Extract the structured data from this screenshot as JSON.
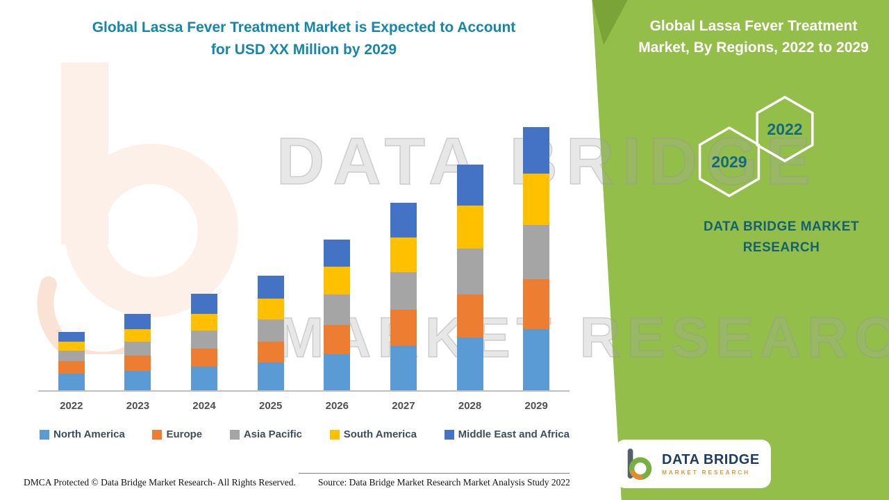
{
  "left_title": {
    "line1": "Global Lassa Fever Treatment Market is Expected to Account",
    "line2": "for USD XX Million by 2029"
  },
  "panel": {
    "title_line1": "Global Lassa Fever Treatment",
    "title_line2": "Market, By Regions, 2022 to 2029",
    "hexagons": [
      {
        "label": "2029"
      },
      {
        "label": "2022"
      }
    ],
    "brand_line1": "DATA BRIDGE MARKET",
    "brand_line2": "RESEARCH",
    "bg_color": "#94BE4A",
    "text_color": "#15616F"
  },
  "watermark": {
    "line1": "DATA BRIDGE",
    "line2": "MARKET RESEARCH"
  },
  "logo": {
    "name": "DATA BRIDGE",
    "subname": "MARKET RESEARCH"
  },
  "footer": {
    "left": "DMCA Protected © Data Bridge Market Research- All Rights Reserved.",
    "source": "Source: Data Bridge Market Research Market Analysis Study 2022"
  },
  "chart_data": {
    "type": "bar",
    "stacked": true,
    "title": "Global Lassa Fever Treatment Market is Expected to Account for USD XX Million by 2029",
    "categories": [
      "2022",
      "2023",
      "2024",
      "2025",
      "2026",
      "2027",
      "2028",
      "2029"
    ],
    "series": [
      {
        "name": "North America",
        "color": "#5B9BD5",
        "values": [
          24,
          28,
          34,
          40,
          52,
          64,
          76,
          88
        ]
      },
      {
        "name": "Europe",
        "color": "#ED7D31",
        "values": [
          18,
          22,
          26,
          30,
          42,
          52,
          62,
          72
        ]
      },
      {
        "name": "Asia Pacific",
        "color": "#A5A5A5",
        "values": [
          15,
          20,
          26,
          32,
          44,
          54,
          66,
          78
        ]
      },
      {
        "name": "South America",
        "color": "#FFC000",
        "values": [
          13,
          18,
          24,
          30,
          40,
          50,
          62,
          74
        ]
      },
      {
        "name": "Middle East and Africa",
        "color": "#4472C4",
        "values": [
          14,
          22,
          29,
          33,
          39,
          50,
          59,
          67
        ]
      }
    ],
    "xlabel": "",
    "ylabel": "",
    "y_axis_visible": false,
    "grid": false,
    "legend_position": "bottom",
    "value_note": "values estimated from bar pixel heights; actual figures undisclosed (USD XX Million)"
  }
}
